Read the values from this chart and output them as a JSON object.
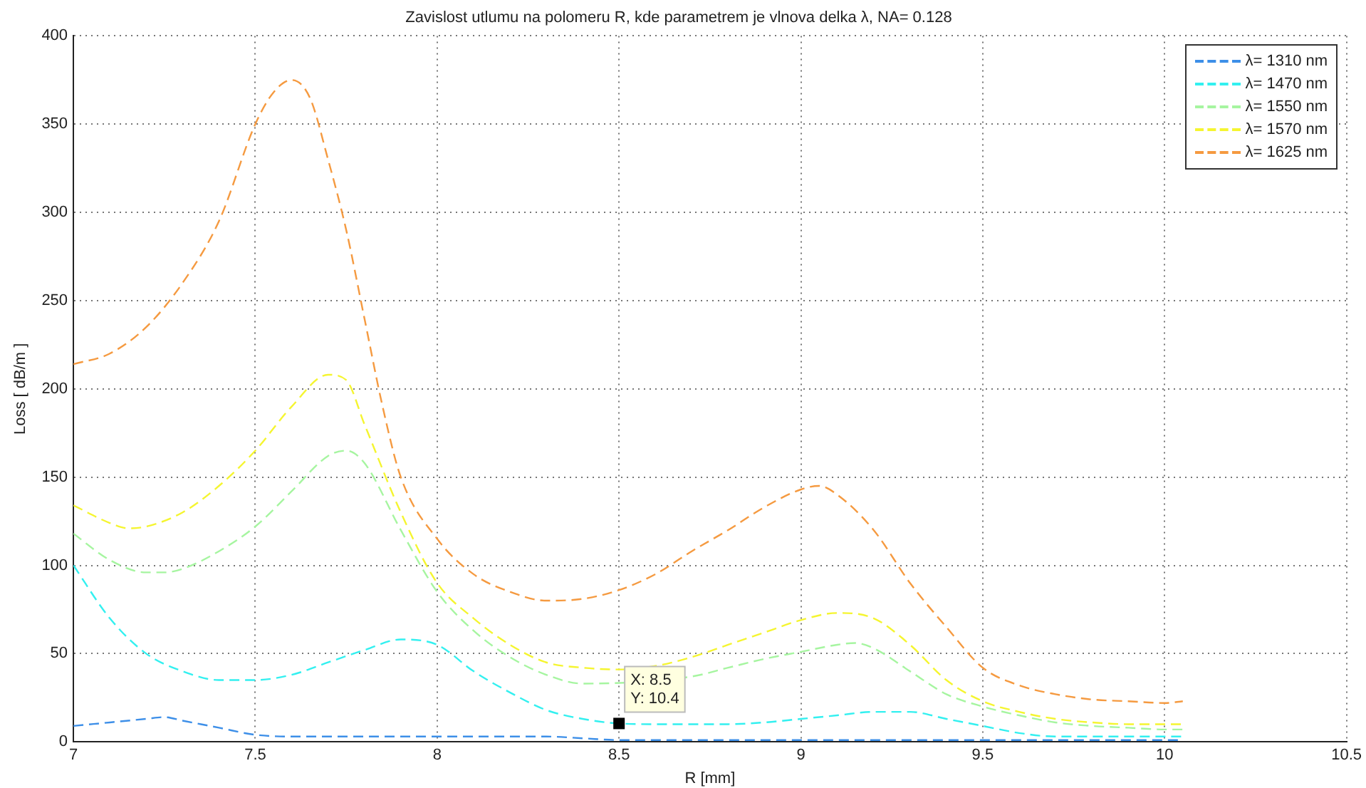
{
  "chart_data": {
    "type": "line",
    "title": "Zavislost utlumu na polomeru R, kde parametrem je vlnova delka λ, NA= 0.128",
    "xlabel": "R [mm]",
    "ylabel": "Loss [ dB/m ]",
    "xlim": [
      7,
      10.5
    ],
    "xticks": [
      7,
      7.5,
      8,
      8.5,
      9,
      9.5,
      10,
      10.5
    ],
    "ylim": [
      0,
      400
    ],
    "yticks": [
      0,
      50,
      100,
      150,
      200,
      250,
      300,
      350,
      400
    ],
    "grid": true,
    "legend": "top right",
    "marker": "none",
    "line_style": "dashed",
    "annotations": [
      {
        "text": "X: 8.5\nY: 10.4",
        "x": 8.5,
        "y": 10.4
      }
    ],
    "series": [
      {
        "name": "λ= 1310 nm",
        "color": "#3d8fe8",
        "x": [
          7,
          7.1,
          7.2,
          7.25,
          7.3,
          7.4,
          7.5,
          7.6,
          7.7,
          7.8,
          8,
          8.2,
          8.3,
          8.4,
          8.5,
          8.7,
          9,
          9.5,
          9.6,
          10.05
        ],
        "values": [
          9,
          11,
          13,
          14,
          12,
          8,
          4,
          3,
          3,
          3,
          3,
          3,
          3,
          2,
          1,
          1,
          1,
          1,
          1,
          1
        ]
      },
      {
        "name": "λ= 1470 nm",
        "color": "#33f0f0",
        "x": [
          7,
          7.1,
          7.2,
          7.3,
          7.4,
          7.5,
          7.6,
          7.7,
          7.8,
          7.9,
          8,
          8.1,
          8.2,
          8.3,
          8.4,
          8.5,
          8.6,
          8.7,
          8.8,
          8.9,
          9,
          9.1,
          9.2,
          9.3,
          9.4,
          9.5,
          9.6,
          9.7,
          9.8,
          10.05
        ],
        "values": [
          100,
          70,
          50,
          40,
          35,
          35,
          38,
          45,
          52,
          58,
          55,
          40,
          28,
          18,
          13,
          10.4,
          10,
          10,
          10,
          11,
          13,
          15,
          17,
          17,
          13,
          9,
          5,
          3,
          3,
          3
        ]
      },
      {
        "name": "λ= 1550 nm",
        "color": "#a6f5a0",
        "x": [
          7,
          7.1,
          7.2,
          7.25,
          7.3,
          7.4,
          7.5,
          7.6,
          7.7,
          7.75,
          7.8,
          7.9,
          8,
          8.1,
          8.2,
          8.3,
          8.4,
          8.5,
          8.6,
          8.7,
          8.8,
          8.9,
          9,
          9.1,
          9.15,
          9.2,
          9.3,
          9.4,
          9.5,
          9.6,
          9.7,
          9.8,
          9.9,
          10,
          10.05
        ],
        "values": [
          118,
          103,
          96,
          96,
          98,
          108,
          122,
          142,
          162,
          165,
          158,
          120,
          85,
          63,
          48,
          38,
          33,
          null,
          null,
          37,
          42,
          47,
          51,
          55,
          56,
          53,
          40,
          27,
          20,
          15,
          11,
          9,
          8,
          7,
          7
        ]
      },
      {
        "name": "λ= 1570 nm",
        "color": "#f5f530",
        "x": [
          7,
          7.1,
          7.15,
          7.2,
          7.3,
          7.4,
          7.5,
          7.6,
          7.7,
          7.75,
          7.8,
          7.9,
          8,
          8.1,
          8.2,
          8.3,
          8.4,
          8.5,
          8.6,
          8.7,
          8.8,
          8.9,
          9,
          9.1,
          9.2,
          9.3,
          9.4,
          9.5,
          9.6,
          9.7,
          9.8,
          9.9,
          10,
          10.05
        ],
        "values": [
          134,
          124,
          121,
          122,
          130,
          145,
          165,
          190,
          208,
          205,
          180,
          130,
          90,
          70,
          55,
          45,
          42,
          41,
          43,
          48,
          55,
          62,
          69,
          73,
          70,
          55,
          35,
          23,
          17,
          13,
          11,
          10,
          10,
          10
        ]
      },
      {
        "name": "λ= 1625 nm",
        "color": "#f59a40",
        "x": [
          7,
          7.1,
          7.2,
          7.3,
          7.4,
          7.5,
          7.55,
          7.6,
          7.65,
          7.7,
          7.75,
          7.8,
          7.85,
          7.9,
          8,
          8.1,
          8.2,
          8.3,
          8.4,
          8.5,
          8.6,
          8.7,
          8.8,
          8.9,
          9,
          9.05,
          9.1,
          9.2,
          9.3,
          9.4,
          9.5,
          9.6,
          9.7,
          9.8,
          9.9,
          10,
          10.05
        ],
        "values": [
          214,
          220,
          235,
          260,
          295,
          350,
          368,
          375,
          365,
          330,
          290,
          240,
          190,
          150,
          115,
          95,
          85,
          80,
          81,
          86,
          95,
          108,
          120,
          133,
          143,
          145,
          140,
          120,
          90,
          65,
          42,
          32,
          27,
          24,
          23,
          22,
          23
        ]
      }
    ]
  }
}
